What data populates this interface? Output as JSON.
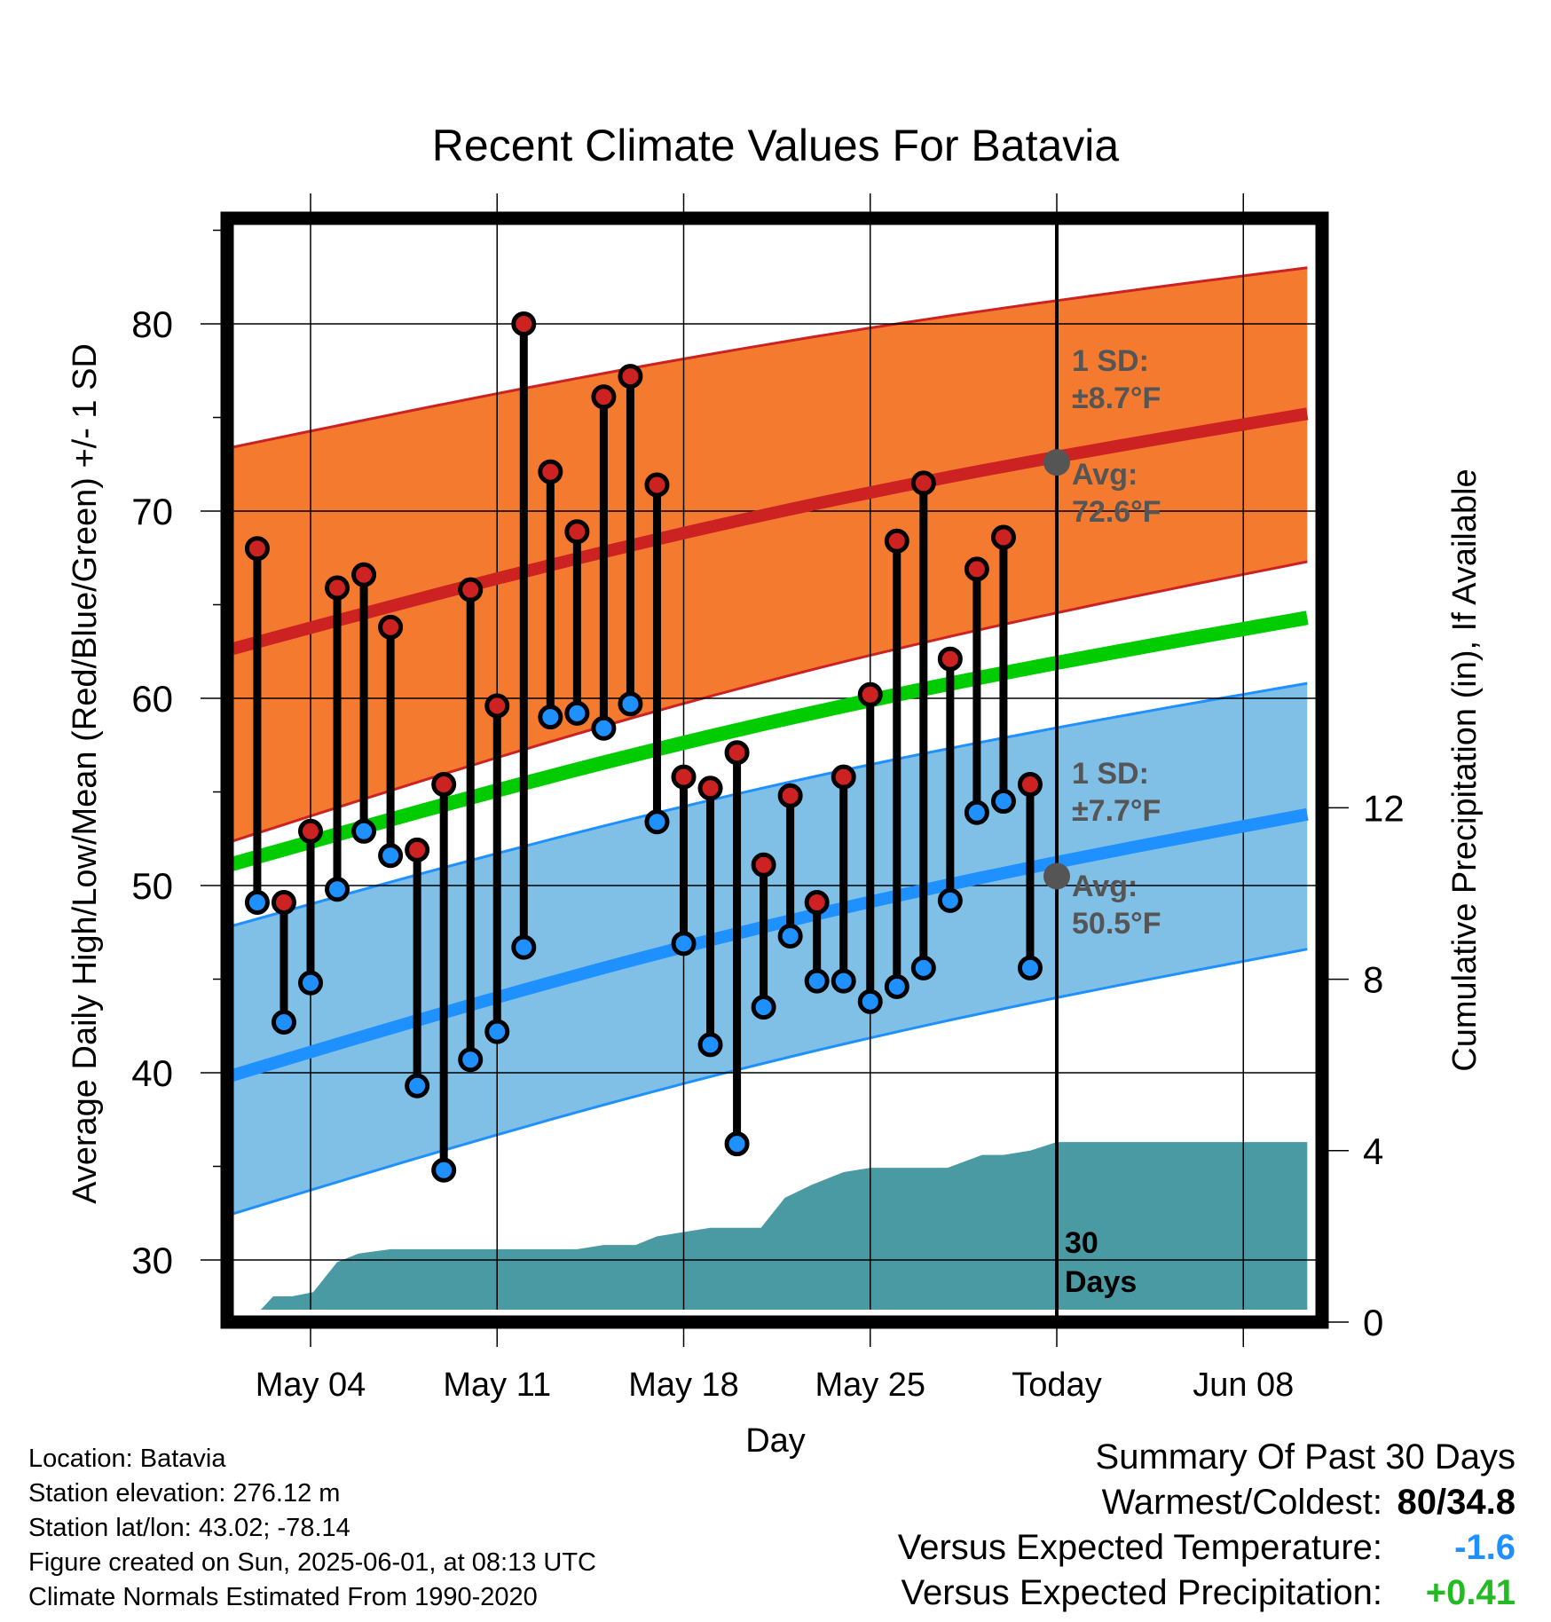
{
  "chart_data": {
    "type": "line",
    "title": "Recent Climate Values For Batavia",
    "xlabel": "Day",
    "ylabel": "Average Daily High/Low/Mean (Red/Blue/Green) +/- 1 SD",
    "y2label": "Cumulative Precipitation (in), If Available",
    "ylim": [
      27,
      85
    ],
    "y2lim": [
      0,
      23.1
    ],
    "yticks": [
      30,
      40,
      50,
      60,
      70,
      80
    ],
    "y2ticks": [
      0,
      4,
      8,
      12
    ],
    "xticks": [
      {
        "day": 4,
        "label": "May 04"
      },
      {
        "day": 11,
        "label": "May 11"
      },
      {
        "day": 18,
        "label": "May 18"
      },
      {
        "day": 25,
        "label": "May 25"
      },
      {
        "day": 32,
        "label": "Today"
      },
      {
        "day": 39,
        "label": "Jun 08"
      }
    ],
    "xlim": [
      0.7,
      41.4
    ],
    "grid": true,
    "x_axis": "day of May 2025 (May 04 = 4, Today = Jun 01 = 32)",
    "normals": {
      "x": [
        0.7,
        41.4
      ],
      "high_avg": [
        62.5,
        75.2
      ],
      "high_plus_sd": [
        73.3,
        83.0
      ],
      "high_minus_sd": [
        52.2,
        67.3
      ],
      "mean_avg": [
        51.0,
        64.3
      ],
      "low_avg": [
        39.7,
        53.8
      ],
      "low_plus_sd": [
        47.7,
        60.8
      ],
      "low_minus_sd": [
        32.3,
        46.6
      ]
    },
    "today_markers": {
      "high_avg": 72.6,
      "low_avg": 50.5
    },
    "daily": {
      "days": [
        2,
        3,
        4,
        5,
        6,
        7,
        8,
        9,
        10,
        11,
        12,
        13,
        14,
        15,
        16,
        17,
        18,
        19,
        20,
        21,
        22,
        23,
        24,
        25,
        26,
        27,
        28,
        29,
        30,
        31
      ],
      "high": [
        68.0,
        49.1,
        52.9,
        65.9,
        66.6,
        63.8,
        51.9,
        55.4,
        65.8,
        59.6,
        80.0,
        72.1,
        68.9,
        76.1,
        77.2,
        71.4,
        55.8,
        55.2,
        57.1,
        51.1,
        54.8,
        49.1,
        55.8,
        60.2,
        68.4,
        71.5,
        62.1,
        66.9,
        68.6,
        55.4
      ],
      "low": [
        49.1,
        42.7,
        44.8,
        49.8,
        52.9,
        51.6,
        39.3,
        34.8,
        40.7,
        42.2,
        46.7,
        59.0,
        59.2,
        58.4,
        59.7,
        53.4,
        46.9,
        41.5,
        36.2,
        43.5,
        47.3,
        44.9,
        44.9,
        43.8,
        44.6,
        45.6,
        49.2,
        53.9,
        54.5,
        45.6
      ]
    },
    "precip": {
      "x": [
        1.7,
        2.6,
        3.3,
        4.1,
        5.0,
        5.8,
        7.0,
        8.0,
        10.0,
        12.0,
        14.0,
        15.0,
        16.2,
        17.0,
        19.0,
        20.0,
        20.9,
        21.8,
        22.8,
        24.0,
        25.0,
        26.0,
        27.0,
        27.9,
        29.2,
        30.0,
        31.0,
        32.0,
        41.4
      ],
      "values": [
        0.0,
        0.6,
        0.6,
        0.7,
        1.4,
        1.6,
        1.7,
        1.7,
        1.7,
        1.7,
        1.7,
        1.8,
        1.8,
        2.0,
        2.2,
        2.2,
        2.2,
        2.9,
        3.2,
        3.5,
        3.6,
        3.6,
        3.6,
        3.6,
        3.9,
        3.9,
        4.0,
        4.2,
        4.2
      ]
    },
    "annotations": {
      "high_sd_label": "1 SD:",
      "high_sd_value": "±8.7°F",
      "high_avg_label": "Avg:",
      "high_avg_value": "72.6°F",
      "low_sd_label": "1 SD:",
      "low_sd_value": "±7.7°F",
      "low_avg_label": "Avg:",
      "low_avg_value": "50.5°F",
      "days_line1": "30",
      "days_line2": "Days"
    },
    "colors": {
      "high": "#cc2222",
      "high_band": "#f47a30",
      "mean": "#00cc00",
      "low": "#1e90ff",
      "low_band": "#80bfe6",
      "precip": "#4a9aa4",
      "marker_gray": "#555555",
      "annotation_gray": "#555555"
    }
  },
  "footer": {
    "location": "Location: Batavia",
    "elevation": "Station elevation: 276.12 m",
    "latlon": "Station lat/lon: 43.02; -78.14",
    "created": "Figure created on Sun, 2025-06-01, at 08:13 UTC",
    "normals": "Climate Normals Estimated From 1990-2020"
  },
  "summary": {
    "title": "Summary Of Past 30 Days",
    "warmest_label": "Warmest/Coldest:",
    "warmest_value": "80/34.8",
    "temp_label": "Versus Expected Temperature:",
    "temp_value": "-1.6",
    "temp_color": "#1e90ff",
    "precip_label": "Versus Expected Precipitation:",
    "precip_value": "+0.41",
    "precip_color": "#22bb22"
  }
}
